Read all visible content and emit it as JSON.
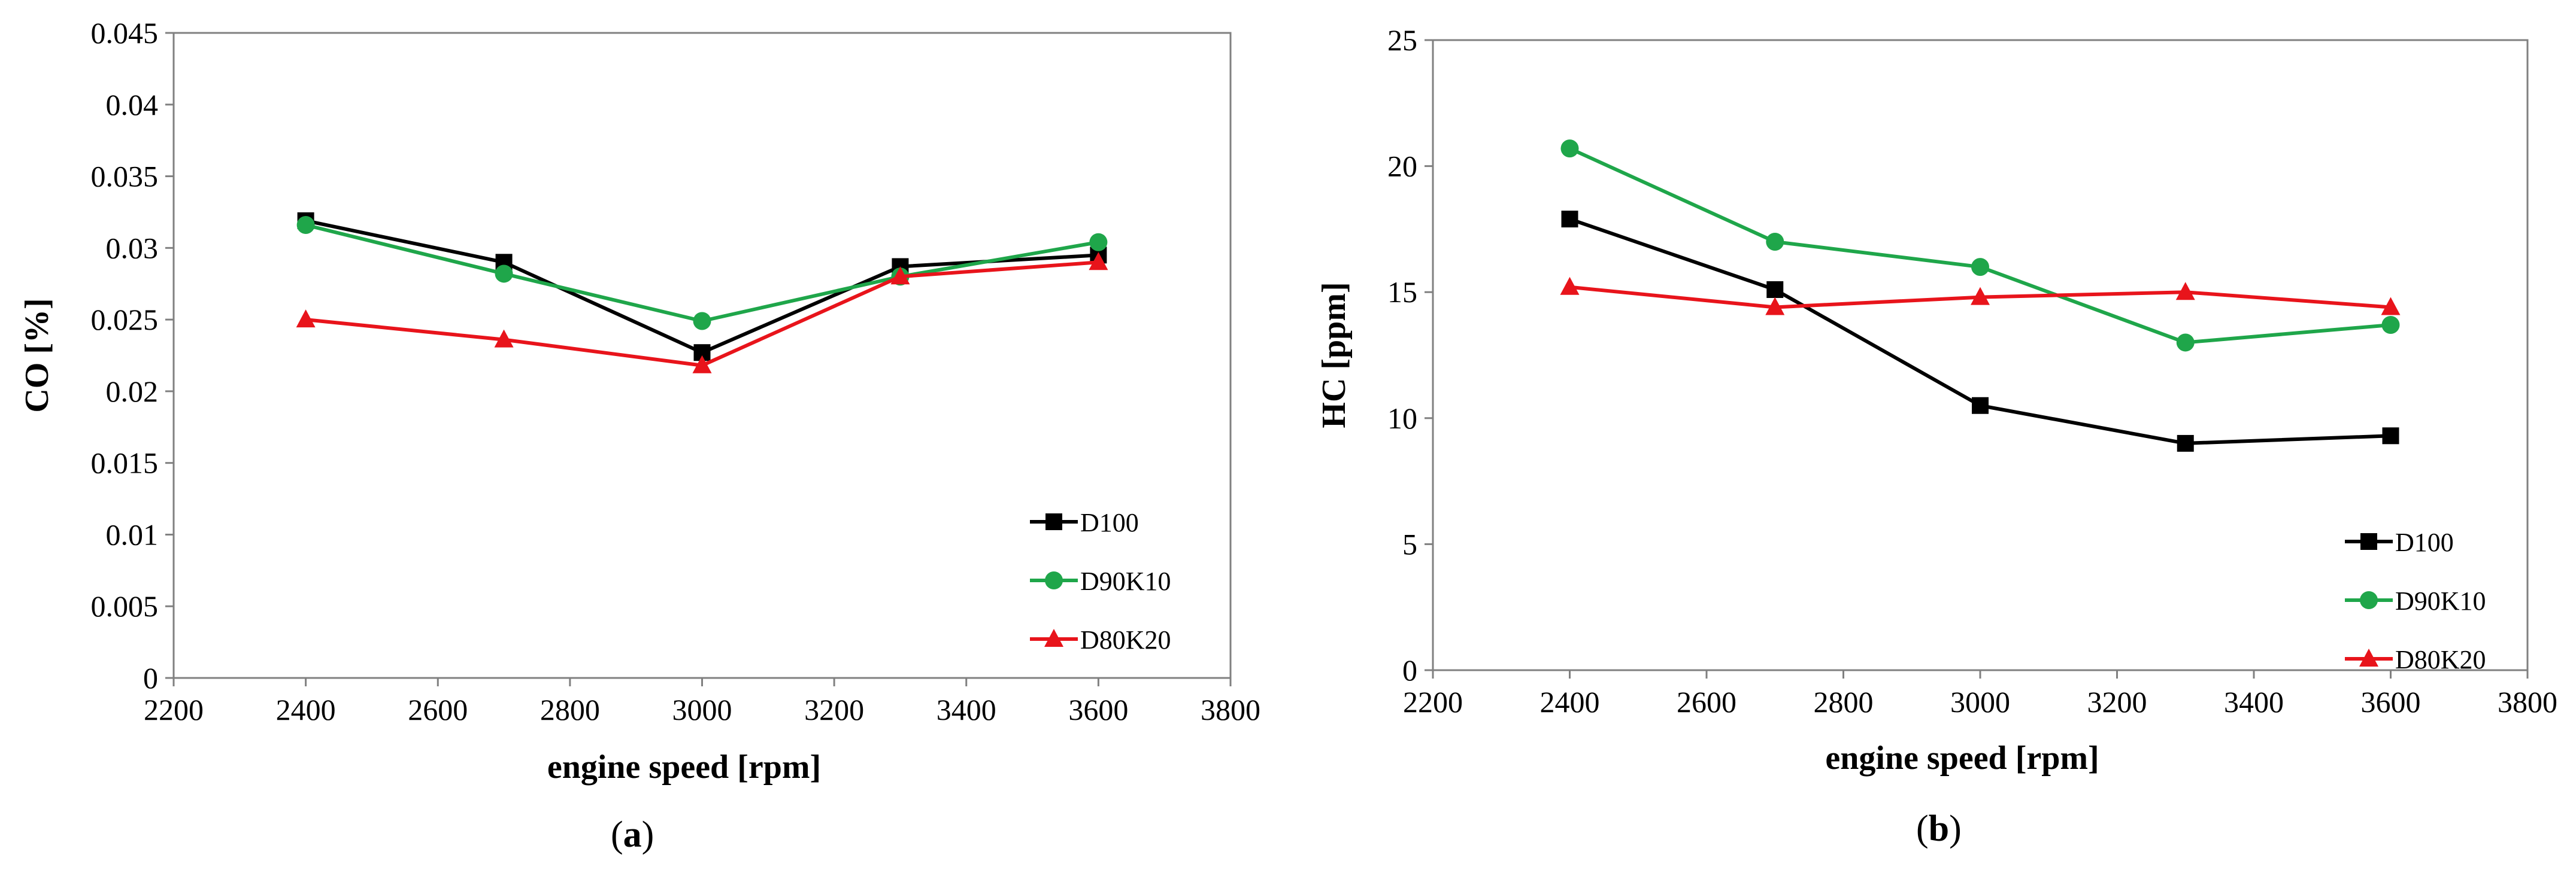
{
  "chart_data": [
    {
      "id": "a",
      "type": "line",
      "panel_label": "a",
      "xlabel": "engine speed [rpm]",
      "ylabel": "CO [%]",
      "xlim": [
        2200,
        3800
      ],
      "xticks": [
        2200,
        2400,
        2600,
        2800,
        3000,
        3200,
        3400,
        3600,
        3800
      ],
      "ylim": [
        0,
        0.045
      ],
      "yticks": [
        0,
        0.005,
        0.01,
        0.015,
        0.02,
        0.025,
        0.03,
        0.035,
        0.04,
        0.045
      ],
      "ytick_labels": [
        "0",
        "0.005",
        "0.01",
        "0.015",
        "0.02",
        "0.025",
        "0.03",
        "0.035",
        "0.04",
        "0.045"
      ],
      "x": [
        2400,
        2700,
        3000,
        3300,
        3600
      ],
      "legend_position": "bottom-right",
      "series": [
        {
          "name": "D100",
          "color": "#000000",
          "marker": "square",
          "values": [
            0.0319,
            0.029,
            0.0227,
            0.0287,
            0.0295
          ]
        },
        {
          "name": "D90K10",
          "color": "#1fa64a",
          "marker": "circle",
          "values": [
            0.0316,
            0.0282,
            0.0249,
            0.028,
            0.0304
          ]
        },
        {
          "name": "D80K20",
          "color": "#e8141b",
          "marker": "triangle",
          "values": [
            0.025,
            0.0236,
            0.0218,
            0.028,
            0.029
          ]
        }
      ]
    },
    {
      "id": "b",
      "type": "line",
      "panel_label": "b",
      "xlabel": "engine speed [rpm]",
      "ylabel": "HC [ppm]",
      "xlim": [
        2200,
        3800
      ],
      "xticks": [
        2200,
        2400,
        2600,
        2800,
        3000,
        3200,
        3400,
        3600,
        3800
      ],
      "ylim": [
        0,
        25
      ],
      "yticks": [
        0,
        5,
        10,
        15,
        20,
        25
      ],
      "ytick_labels": [
        "0",
        "5",
        "10",
        "15",
        "20",
        "25"
      ],
      "x": [
        2400,
        2700,
        3000,
        3300,
        3600
      ],
      "legend_position": "bottom-right",
      "series": [
        {
          "name": "D100",
          "color": "#000000",
          "marker": "square",
          "values": [
            17.9,
            15.1,
            10.5,
            9.0,
            9.3
          ]
        },
        {
          "name": "D90K10",
          "color": "#1fa64a",
          "marker": "circle",
          "values": [
            20.7,
            17.0,
            16.0,
            13.0,
            13.7
          ]
        },
        {
          "name": "D80K20",
          "color": "#e8141b",
          "marker": "triangle",
          "values": [
            15.2,
            14.4,
            14.8,
            15.0,
            14.4
          ]
        }
      ]
    }
  ]
}
